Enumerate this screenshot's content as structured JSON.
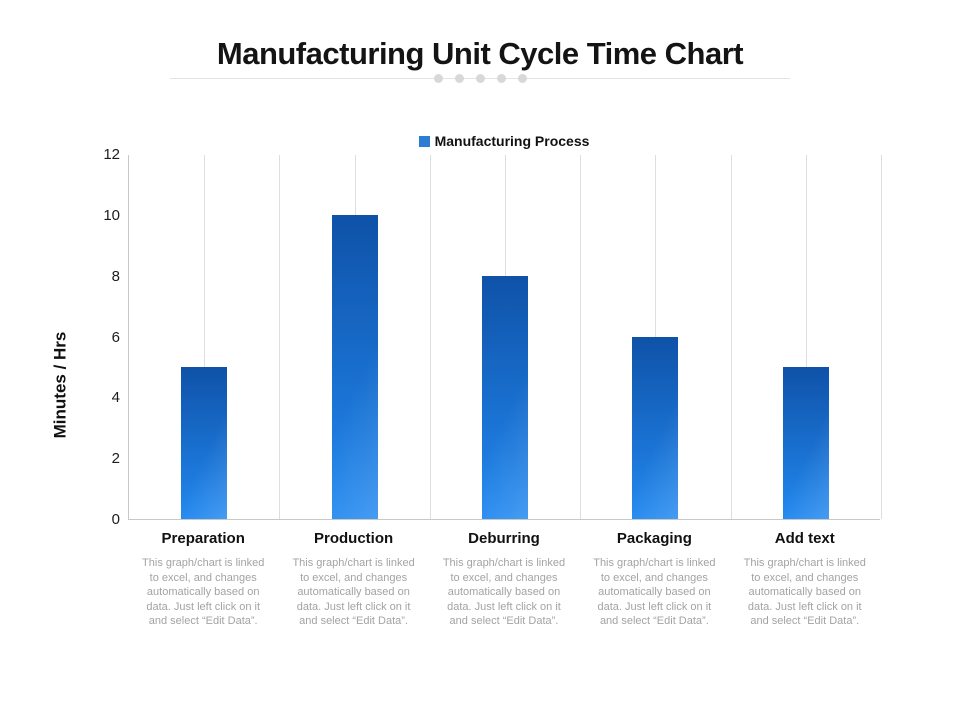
{
  "slide": {
    "title": "Manufacturing Unit Cycle Time Chart",
    "background": "#ffffff"
  },
  "chart_data": {
    "type": "bar",
    "title": "Manufacturing Unit Cycle Time Chart",
    "categories": [
      "Preparation",
      "Production",
      "Deburring",
      "Packaging",
      "Add text"
    ],
    "series": [
      {
        "name": "Manufacturing Process",
        "values": [
          5,
          10,
          8,
          6,
          5
        ]
      }
    ],
    "xlabel": "",
    "ylabel": "Minutes / Hrs",
    "ylim": [
      0,
      12
    ],
    "yticks": [
      0,
      2,
      4,
      6,
      8,
      10,
      12
    ],
    "grid": "vertical-minor-only",
    "legend_position": "top-center",
    "colors": {
      "bar_gradient_top": "#0f52a8",
      "bar_gradient_bottom": "#2289f0",
      "legend_swatch": "#2d7dd2",
      "gridline": "#dedede",
      "axis_line": "#c8c8c8",
      "caption_text": "#a3a3a3",
      "label_text": "#111111"
    }
  },
  "category_caption": "This graph/chart is linked to excel, and changes automatically based on data. Just left click on it and select “Edit Data”."
}
